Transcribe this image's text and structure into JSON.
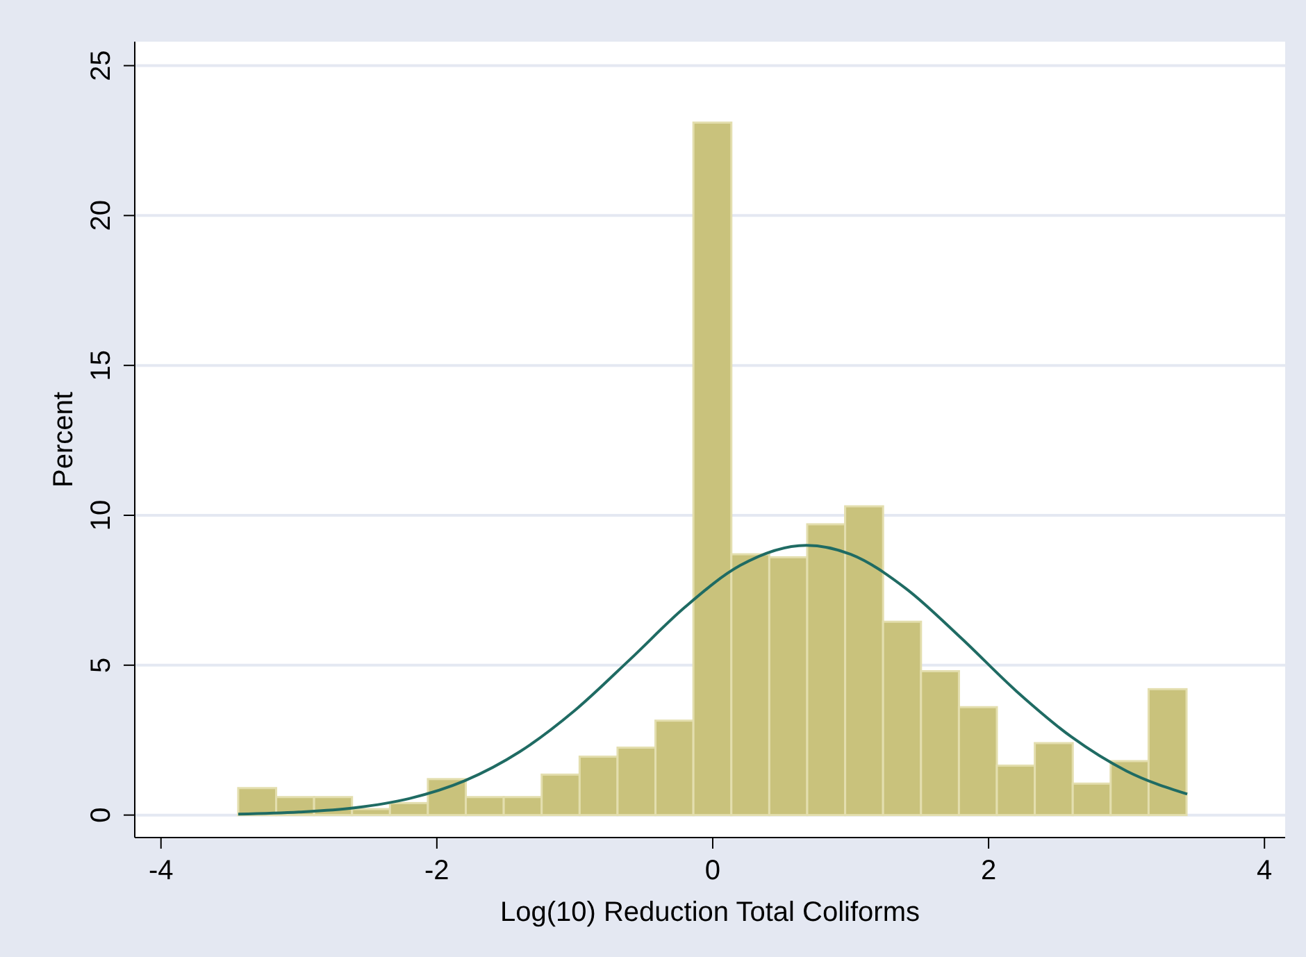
{
  "chart_data": {
    "type": "histogram",
    "xlabel": "Log(10) Reduction Total Coliforms",
    "ylabel": "Percent",
    "bins": [
      -3.44,
      -3.165,
      -2.89,
      -2.615,
      -2.34,
      -2.065,
      -1.79,
      -1.515,
      -1.24,
      -0.965,
      -0.69,
      -0.415,
      -0.14,
      0.135,
      0.41,
      0.685,
      0.96,
      1.235,
      1.51,
      1.785,
      2.06,
      2.335,
      2.61,
      2.885,
      3.16,
      3.435
    ],
    "values": [
      0.9,
      0.6,
      0.6,
      0.2,
      0.4,
      1.2,
      0.6,
      0.6,
      1.35,
      1.95,
      2.25,
      3.15,
      23.1,
      8.7,
      8.6,
      9.7,
      10.3,
      6.45,
      4.8,
      3.6,
      1.65,
      2.4,
      1.05,
      1.8,
      4.2
    ],
    "color": "#c9c27c",
    "series": [
      {
        "type": "line",
        "color": "#1f6b63",
        "x": [
          -3.44,
          -3.0,
          -2.6,
          -2.2,
          -1.8,
          -1.4,
          -1.0,
          -0.6,
          -0.2,
          0.2,
          0.68,
          1.0,
          1.4,
          1.8,
          2.2,
          2.6,
          3.0,
          3.44
        ],
        "values": [
          0.03,
          0.1,
          0.24,
          0.55,
          1.14,
          2.11,
          3.49,
          5.19,
          6.94,
          8.33,
          9,
          8.7,
          7.56,
          5.91,
          4.14,
          2.61,
          1.47,
          0.7
        ]
      }
    ],
    "xlim": [
      -4.19,
      4.15
    ],
    "xticks": [
      -4,
      -2,
      0,
      2,
      4
    ],
    "ylim": [
      -0.75,
      25.8
    ],
    "yticks": [
      0,
      5,
      10,
      15,
      20,
      25
    ],
    "grid": "y"
  }
}
